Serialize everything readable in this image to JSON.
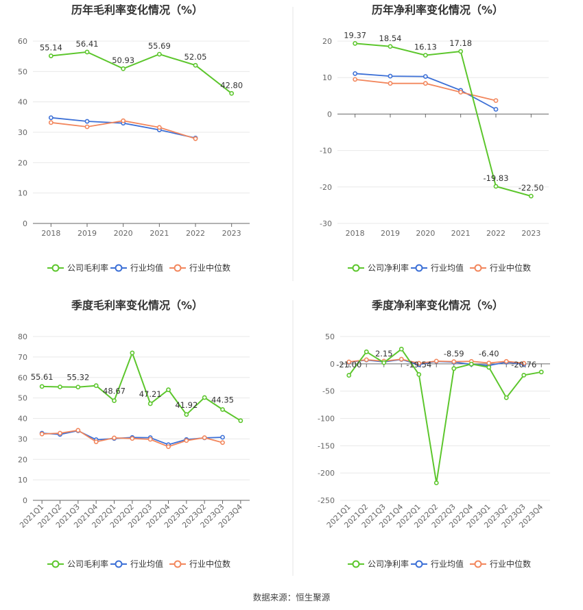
{
  "source": "数据来源：恒生聚源",
  "colors": {
    "company": "#5cc62c",
    "avg": "#3b6fd6",
    "median": "#f2865c",
    "grid": "#e8e8e8",
    "axis": "#666666",
    "divider": "#e6e6e6"
  },
  "chart_data": [
    {
      "id": "annual-gross",
      "type": "line",
      "title": "历年毛利率变化情况（%）",
      "categories": [
        "2018",
        "2019",
        "2020",
        "2021",
        "2022",
        "2023"
      ],
      "ylim": [
        0,
        60
      ],
      "yticks": [
        0,
        10,
        20,
        30,
        40,
        50,
        60
      ],
      "grid": true,
      "legend": "bottom-center",
      "series": [
        {
          "name": "公司毛利率",
          "key": "company",
          "values": [
            55.14,
            56.41,
            50.93,
            55.69,
            52.05,
            42.8
          ]
        },
        {
          "name": "行业均值",
          "key": "avg",
          "values": [
            34.8,
            33.6,
            33.0,
            30.8,
            28.1,
            null
          ]
        },
        {
          "name": "行业中位数",
          "key": "median",
          "values": [
            33.2,
            31.8,
            33.8,
            31.6,
            27.9,
            null
          ]
        }
      ],
      "data_labels": [
        {
          "index": 0,
          "text": "55.14"
        },
        {
          "index": 1,
          "text": "56.41"
        },
        {
          "index": 2,
          "text": "50.93"
        },
        {
          "index": 3,
          "text": "55.69"
        },
        {
          "index": 4,
          "text": "52.05"
        },
        {
          "index": 5,
          "text": "42.80"
        }
      ]
    },
    {
      "id": "annual-net",
      "type": "line",
      "title": "历年净利率变化情况（%）",
      "categories": [
        "2018",
        "2019",
        "2020",
        "2021",
        "2022",
        "2023"
      ],
      "ylim": [
        -30,
        20
      ],
      "yticks": [
        -30,
        -20,
        -10,
        0,
        10,
        20
      ],
      "grid": true,
      "legend": "bottom-center",
      "series": [
        {
          "name": "公司净利率",
          "key": "company",
          "values": [
            19.37,
            18.54,
            16.13,
            17.18,
            -19.83,
            -22.5
          ]
        },
        {
          "name": "行业均值",
          "key": "avg",
          "values": [
            11.1,
            10.4,
            10.3,
            6.5,
            1.3,
            null
          ]
        },
        {
          "name": "行业中位数",
          "key": "median",
          "values": [
            9.5,
            8.4,
            8.4,
            6.0,
            3.7,
            null
          ]
        }
      ],
      "data_labels": [
        {
          "index": 0,
          "text": "19.37"
        },
        {
          "index": 1,
          "text": "18.54"
        },
        {
          "index": 2,
          "text": "16.13"
        },
        {
          "index": 3,
          "text": "17.18"
        },
        {
          "index": 4,
          "text": "-19.83"
        },
        {
          "index": 5,
          "text": "-22.50"
        }
      ]
    },
    {
      "id": "quarterly-gross",
      "type": "line",
      "title": "季度毛利率变化情况（%）",
      "categories": [
        "2021Q1",
        "2021Q2",
        "2021Q3",
        "2021Q4",
        "2022Q1",
        "2022Q2",
        "2022Q3",
        "2022Q4",
        "2023Q1",
        "2023Q2",
        "2023Q3",
        "2023Q4"
      ],
      "ylim": [
        0,
        80
      ],
      "yticks": [
        0,
        10,
        20,
        30,
        40,
        50,
        60,
        70,
        80
      ],
      "grid": true,
      "legend": "bottom-center",
      "series": [
        {
          "name": "公司毛利率",
          "key": "company",
          "values": [
            55.61,
            55.4,
            55.32,
            56.0,
            48.67,
            72.0,
            47.21,
            54.0,
            41.92,
            50.2,
            44.35,
            38.9
          ]
        },
        {
          "name": "行业均值",
          "key": "avg",
          "values": [
            32.8,
            32.2,
            34.0,
            29.6,
            30.2,
            30.7,
            30.6,
            27.2,
            29.7,
            30.5,
            30.8,
            null
          ]
        },
        {
          "name": "行业中位数",
          "key": "median",
          "values": [
            32.4,
            32.8,
            34.2,
            28.6,
            30.5,
            30.2,
            29.8,
            26.2,
            29.2,
            30.6,
            28.2,
            null
          ]
        }
      ],
      "data_labels": [
        {
          "index": 0,
          "text": "55.61"
        },
        {
          "index": 2,
          "text": "55.32"
        },
        {
          "index": 4,
          "text": "48.67"
        },
        {
          "index": 6,
          "text": "47.21"
        },
        {
          "index": 8,
          "text": "41.92"
        },
        {
          "index": 10,
          "text": "44.35"
        }
      ]
    },
    {
      "id": "quarterly-net",
      "type": "line",
      "title": "季度净利率变化情况（%）",
      "categories": [
        "2021Q1",
        "2021Q2",
        "2021Q3",
        "2021Q4",
        "2022Q1",
        "2022Q2",
        "2022Q3",
        "2022Q4",
        "2023Q1",
        "2023Q2",
        "2023Q3",
        "2023Q4"
      ],
      "ylim": [
        -250,
        50
      ],
      "yticks": [
        -250,
        -200,
        -150,
        -100,
        -50,
        0,
        50
      ],
      "grid": true,
      "legend": "bottom-center",
      "series": [
        {
          "name": "公司净利率",
          "key": "company",
          "values": [
            -21.0,
            22.0,
            2.15,
            27.0,
            -19.54,
            -218.0,
            -8.59,
            -0.5,
            -6.4,
            -62.0,
            -20.76,
            -15.0
          ]
        },
        {
          "name": "行业均值",
          "key": "avg",
          "values": [
            3.0,
            7.0,
            3.5,
            8.0,
            -1.5,
            4.5,
            3.0,
            -1.0,
            -3.0,
            3.0,
            -1.0,
            null
          ]
        },
        {
          "name": "行业中位数",
          "key": "median",
          "values": [
            3.5,
            7.5,
            5.0,
            8.5,
            1.0,
            5.0,
            4.0,
            4.5,
            1.5,
            4.5,
            1.0,
            null
          ]
        }
      ],
      "data_labels": [
        {
          "index": 0,
          "text": "-21.00"
        },
        {
          "index": 2,
          "text": "2.15"
        },
        {
          "index": 4,
          "text": "-19.54"
        },
        {
          "index": 6,
          "text": "-8.59"
        },
        {
          "index": 8,
          "text": "-6.40"
        },
        {
          "index": 10,
          "text": "-20.76"
        }
      ]
    }
  ]
}
